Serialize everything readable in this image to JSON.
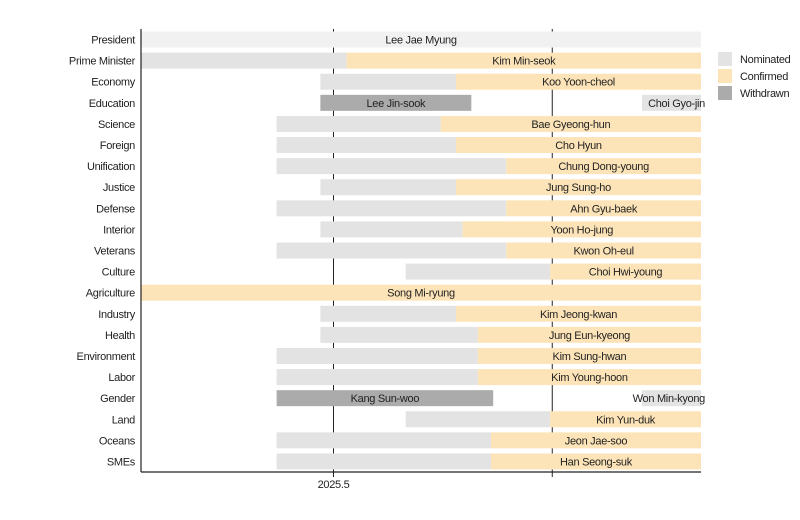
{
  "chart_data": {
    "type": "gantt",
    "title": "",
    "xlabel": "",
    "ylabel": "",
    "xlim": [
      2025.412,
      2025.668
    ],
    "x_ticks": [
      2025.5,
      2025.6
    ],
    "x_tick_labels": [
      "2025.5",
      ""
    ],
    "grid": "vertical lines at ticks",
    "legend": {
      "placement": "right",
      "entries": [
        {
          "label": "Nominated",
          "color": "#e3e3e3"
        },
        {
          "label": "Confirmed",
          "color": "#fde4b8"
        },
        {
          "label": "Withdrawn",
          "color": "#ababab"
        }
      ]
    },
    "president_color": "#f1f1f1",
    "rows": [
      {
        "category": "President",
        "segments": [
          {
            "status": "Nominated",
            "start": 2025.412,
            "end": 2025.668,
            "person": "Lee Jae Myung"
          }
        ]
      },
      {
        "category": "Prime Minister",
        "segments": [
          {
            "status": "Nominated",
            "start": 2025.412,
            "end": 2025.506
          },
          {
            "status": "Confirmed",
            "start": 2025.506,
            "end": 2025.668,
            "person": "Kim Min-seok"
          }
        ]
      },
      {
        "category": "Economy",
        "segments": [
          {
            "status": "Nominated",
            "start": 2025.494,
            "end": 2025.556
          },
          {
            "status": "Confirmed",
            "start": 2025.556,
            "end": 2025.668,
            "person": "Koo Yoon-cheol"
          }
        ]
      },
      {
        "category": "Education",
        "segments": [
          {
            "status": "Withdrawn",
            "start": 2025.494,
            "end": 2025.563,
            "person": "Lee Jin-sook"
          },
          {
            "status": "Nominated",
            "start": 2025.641,
            "end": 2025.668,
            "person": "Choi Gyo-jin"
          }
        ]
      },
      {
        "category": "Science",
        "segments": [
          {
            "status": "Nominated",
            "start": 2025.474,
            "end": 2025.549
          },
          {
            "status": "Confirmed",
            "start": 2025.549,
            "end": 2025.668,
            "person": "Bae Gyeong-hun"
          }
        ]
      },
      {
        "category": "Foreign",
        "segments": [
          {
            "status": "Nominated",
            "start": 2025.474,
            "end": 2025.556
          },
          {
            "status": "Confirmed",
            "start": 2025.556,
            "end": 2025.668,
            "person": "Cho Hyun"
          }
        ]
      },
      {
        "category": "Unification",
        "segments": [
          {
            "status": "Nominated",
            "start": 2025.474,
            "end": 2025.579
          },
          {
            "status": "Confirmed",
            "start": 2025.579,
            "end": 2025.668,
            "person": "Chung Dong-young"
          }
        ]
      },
      {
        "category": "Justice",
        "segments": [
          {
            "status": "Nominated",
            "start": 2025.494,
            "end": 2025.556
          },
          {
            "status": "Confirmed",
            "start": 2025.556,
            "end": 2025.668,
            "person": "Jung Sung-ho"
          }
        ]
      },
      {
        "category": "Defense",
        "segments": [
          {
            "status": "Nominated",
            "start": 2025.474,
            "end": 2025.579
          },
          {
            "status": "Confirmed",
            "start": 2025.579,
            "end": 2025.668,
            "person": "Ahn Gyu-baek"
          }
        ]
      },
      {
        "category": "Interior",
        "segments": [
          {
            "status": "Nominated",
            "start": 2025.494,
            "end": 2025.559
          },
          {
            "status": "Confirmed",
            "start": 2025.559,
            "end": 2025.668,
            "person": "Yoon Ho-jung"
          }
        ]
      },
      {
        "category": "Veterans",
        "segments": [
          {
            "status": "Nominated",
            "start": 2025.474,
            "end": 2025.579
          },
          {
            "status": "Confirmed",
            "start": 2025.579,
            "end": 2025.668,
            "person": "Kwon Oh-eul"
          }
        ]
      },
      {
        "category": "Culture",
        "segments": [
          {
            "status": "Nominated",
            "start": 2025.533,
            "end": 2025.599
          },
          {
            "status": "Confirmed",
            "start": 2025.599,
            "end": 2025.668,
            "person": "Choi Hwi-young"
          }
        ]
      },
      {
        "category": "Agriculture",
        "segments": [
          {
            "status": "Confirmed",
            "start": 2025.412,
            "end": 2025.668,
            "person": "Song Mi-ryung"
          }
        ]
      },
      {
        "category": "Industry",
        "segments": [
          {
            "status": "Nominated",
            "start": 2025.494,
            "end": 2025.556
          },
          {
            "status": "Confirmed",
            "start": 2025.556,
            "end": 2025.668,
            "person": "Kim Jeong-kwan"
          }
        ]
      },
      {
        "category": "Health",
        "segments": [
          {
            "status": "Nominated",
            "start": 2025.494,
            "end": 2025.566
          },
          {
            "status": "Confirmed",
            "start": 2025.566,
            "end": 2025.668,
            "person": "Jung Eun-kyeong"
          }
        ]
      },
      {
        "category": "Environment",
        "segments": [
          {
            "status": "Nominated",
            "start": 2025.474,
            "end": 2025.566
          },
          {
            "status": "Confirmed",
            "start": 2025.566,
            "end": 2025.668,
            "person": "Kim Sung-hwan"
          }
        ]
      },
      {
        "category": "Labor",
        "segments": [
          {
            "status": "Nominated",
            "start": 2025.474,
            "end": 2025.566
          },
          {
            "status": "Confirmed",
            "start": 2025.566,
            "end": 2025.668,
            "person": "Kim Young-hoon"
          }
        ]
      },
      {
        "category": "Gender",
        "segments": [
          {
            "status": "Withdrawn",
            "start": 2025.474,
            "end": 2025.573,
            "person": "Kang Sun-woo"
          },
          {
            "status": "Nominated",
            "start": 2025.641,
            "end": 2025.668,
            "person": "Won Min-kyong"
          }
        ]
      },
      {
        "category": "Land",
        "segments": [
          {
            "status": "Nominated",
            "start": 2025.533,
            "end": 2025.599
          },
          {
            "status": "Confirmed",
            "start": 2025.599,
            "end": 2025.668,
            "person": "Kim Yun-duk"
          }
        ]
      },
      {
        "category": "Oceans",
        "segments": [
          {
            "status": "Nominated",
            "start": 2025.474,
            "end": 2025.572
          },
          {
            "status": "Confirmed",
            "start": 2025.572,
            "end": 2025.668,
            "person": "Jeon Jae-soo"
          }
        ]
      },
      {
        "category": "SMEs",
        "segments": [
          {
            "status": "Nominated",
            "start": 2025.474,
            "end": 2025.572
          },
          {
            "status": "Confirmed",
            "start": 2025.572,
            "end": 2025.668,
            "person": "Han Seong-suk"
          }
        ]
      }
    ]
  }
}
